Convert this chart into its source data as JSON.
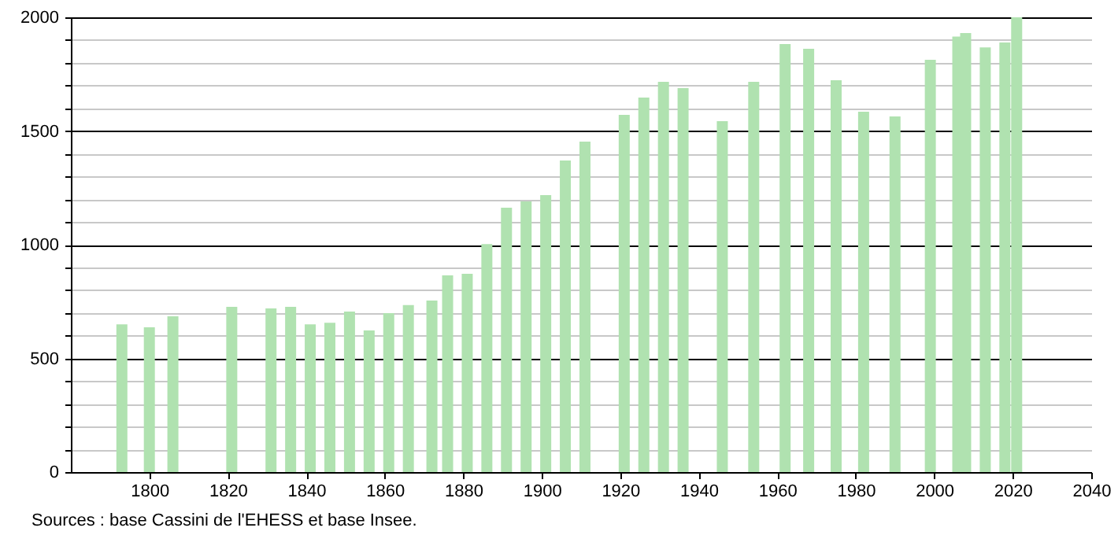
{
  "chart_data": {
    "type": "bar",
    "annotations": [
      "Sources : base Cassini de l'EHESS et base Insee."
    ],
    "x": [
      1793,
      1800,
      1806,
      1821,
      1831,
      1836,
      1841,
      1846,
      1851,
      1856,
      1861,
      1866,
      1872,
      1876,
      1881,
      1886,
      1891,
      1896,
      1901,
      1906,
      1911,
      1921,
      1926,
      1931,
      1936,
      1946,
      1954,
      1962,
      1968,
      1975,
      1982,
      1990,
      1999,
      2006,
      2008,
      2013,
      2018,
      2021
    ],
    "values": [
      650,
      637,
      685,
      727,
      720,
      727,
      650,
      657,
      706,
      623,
      699,
      734,
      754,
      865,
      872,
      1003,
      1163,
      1190,
      1218,
      1370,
      1453,
      1571,
      1647,
      1716,
      1689,
      1543,
      1716,
      1882,
      1862,
      1723,
      1585,
      1564,
      1813,
      1915,
      1931,
      1868,
      1889,
      2000
    ],
    "color": "#b0e2b0",
    "xlim": [
      1780,
      2040
    ],
    "xticks": [
      1800,
      1820,
      1840,
      1860,
      1880,
      1900,
      1920,
      1940,
      1960,
      1980,
      2000,
      2020,
      2040
    ],
    "ylim": [
      0,
      2000
    ],
    "yticks": [
      0,
      {
        "value": 100,
        "label": null
      },
      {
        "value": 200,
        "label": null
      },
      {
        "value": 300,
        "label": null
      },
      {
        "value": 400,
        "label": null
      },
      500,
      {
        "value": 600,
        "label": null
      },
      {
        "value": 700,
        "label": null
      },
      {
        "value": 800,
        "label": null
      },
      {
        "value": 900,
        "label": null
      },
      1000,
      {
        "value": 1100,
        "label": null
      },
      {
        "value": 1200,
        "label": null
      },
      {
        "value": 1300,
        "label": null
      },
      {
        "value": 1400,
        "label": null
      },
      1500,
      {
        "value": 1600,
        "label": null
      },
      {
        "value": 1700,
        "label": null
      },
      {
        "value": 1800,
        "label": null
      },
      {
        "value": 1900,
        "label": null
      },
      2000
    ],
    "grid": "y"
  }
}
